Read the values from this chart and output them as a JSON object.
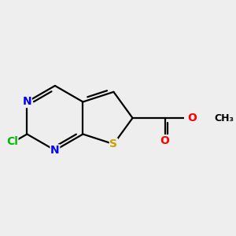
{
  "bg_color": "#eeeeee",
  "atom_colors": {
    "C": "#000000",
    "N": "#0000ff",
    "S": "#c8a000",
    "O": "#ff0000",
    "Cl": "#00bb00"
  },
  "bond_color": "#000000",
  "bond_width": 1.6,
  "font_size_atom": 10,
  "font_size_small": 9
}
